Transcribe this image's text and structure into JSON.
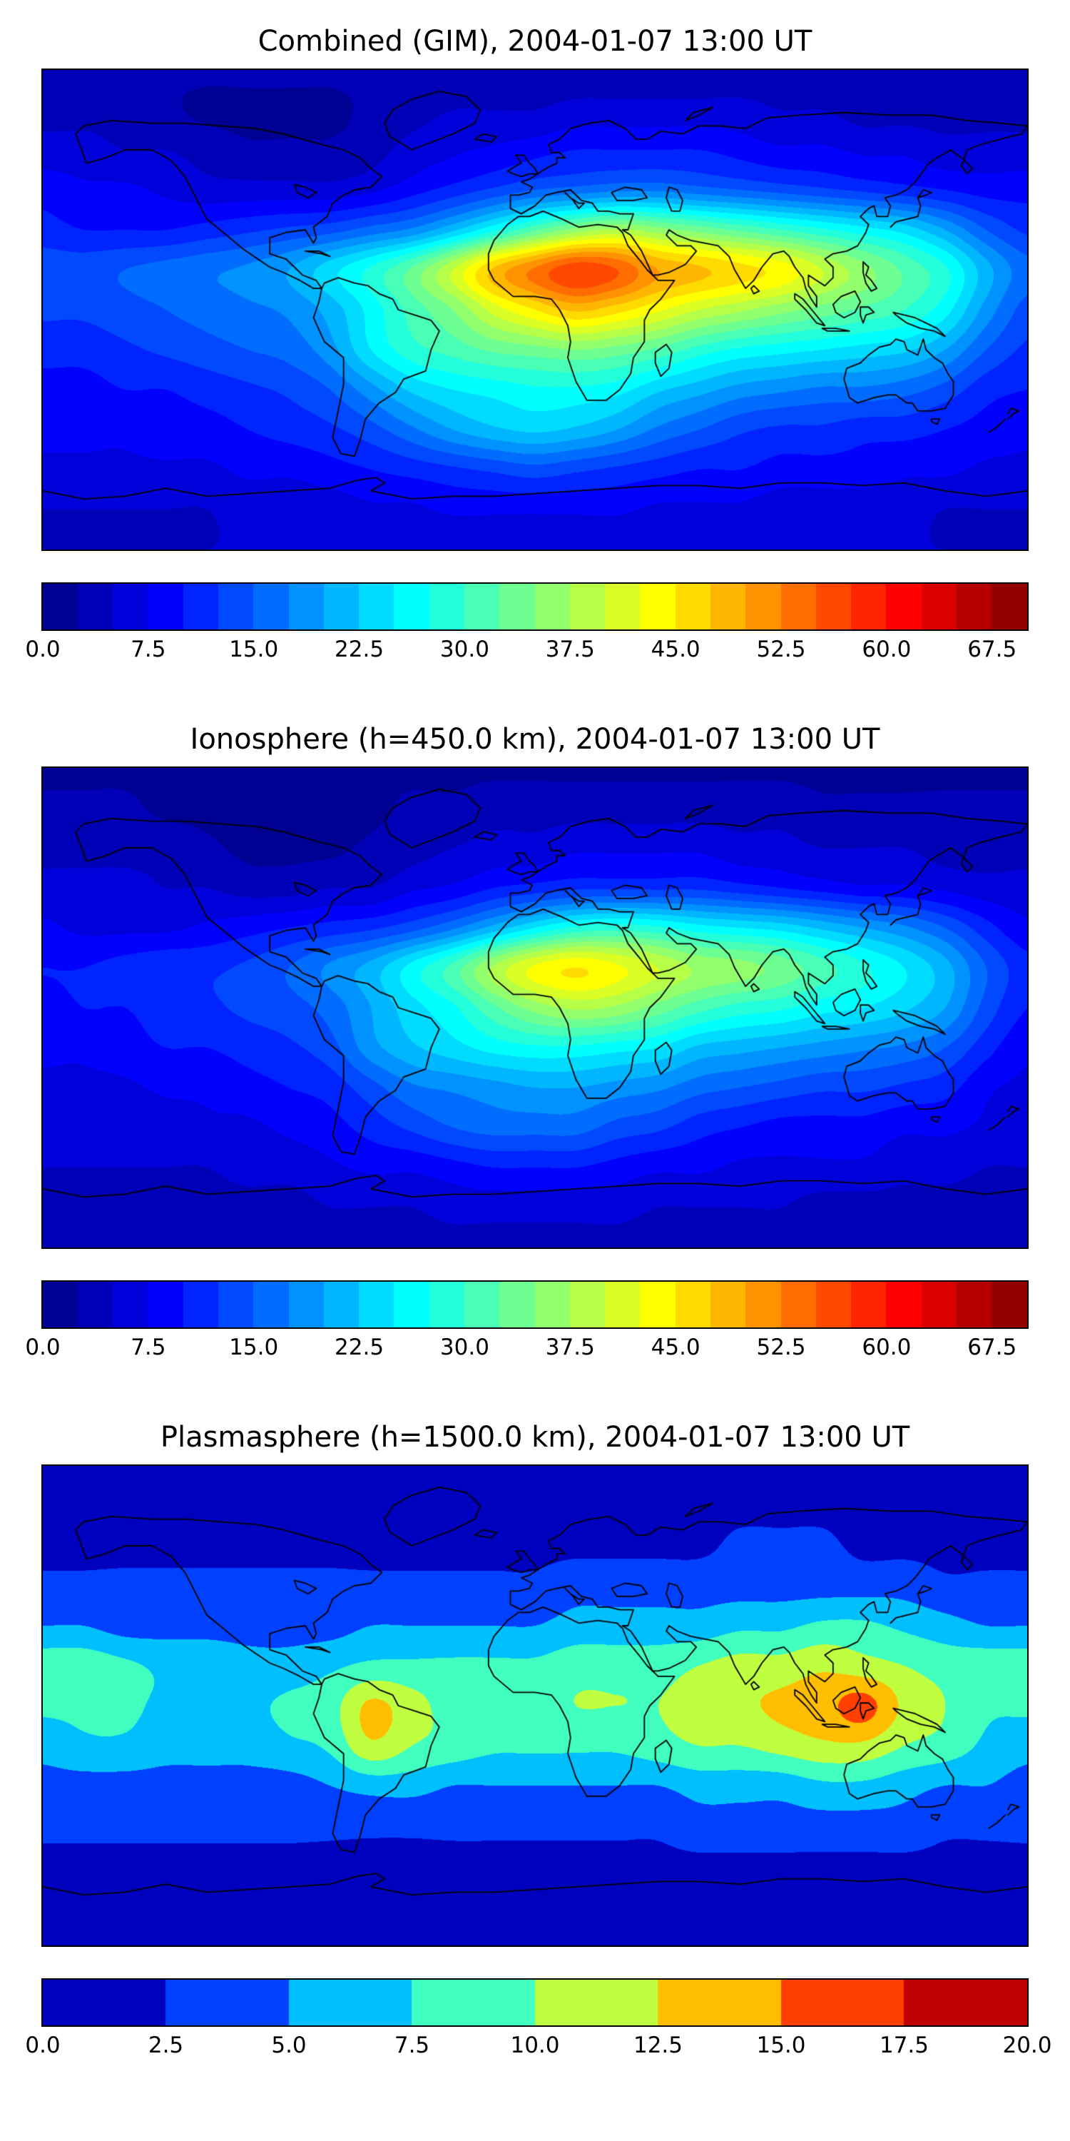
{
  "figure": {
    "background_color": "#ffffff",
    "frame_color": "#000000",
    "text_color": "#000000"
  },
  "chart_data": [
    {
      "type": "heatmap",
      "title": "Combined (GIM), 2004-01-07 13:00 UT",
      "colormap": "jet",
      "projection": "equirectangular",
      "xlabel": "",
      "ylabel": "",
      "lon_range": [
        -180,
        180
      ],
      "lat_range": [
        -90,
        90
      ],
      "x_lons": [
        -180,
        -165,
        -150,
        -135,
        -120,
        -105,
        -90,
        -75,
        -60,
        -45,
        -30,
        -15,
        0,
        15,
        30,
        45,
        60,
        75,
        90,
        105,
        120,
        135,
        150,
        165,
        180
      ],
      "y_lats": [
        90,
        75,
        60,
        45,
        30,
        15,
        0,
        -15,
        -30,
        -45,
        -60,
        -75,
        -90
      ],
      "vmin": 0,
      "vmax": 70,
      "level_step": 2.5,
      "colorbar_ticks": [
        "0.0",
        "7.5",
        "15.0",
        "22.5",
        "30.0",
        "37.5",
        "45.0",
        "52.5",
        "60.0",
        "67.5"
      ],
      "values": [
        [
          3,
          3,
          3,
          3,
          3,
          3,
          3,
          3,
          3,
          3,
          3,
          3,
          3,
          3,
          3,
          3,
          3,
          3,
          3,
          3,
          3,
          3,
          3,
          3,
          3
        ],
        [
          4,
          4,
          4,
          3,
          2,
          2,
          2,
          2,
          3,
          4,
          5,
          5,
          5,
          6,
          6,
          6,
          6,
          6,
          5,
          5,
          4,
          4,
          4,
          4,
          4
        ],
        [
          6,
          6,
          5,
          5,
          4,
          3,
          3,
          3,
          4,
          6,
          7,
          8,
          9,
          10,
          10,
          10,
          10,
          9,
          8,
          8,
          7,
          7,
          6,
          6,
          6
        ],
        [
          9,
          8,
          8,
          7,
          6,
          6,
          6,
          6,
          7,
          9,
          11,
          13,
          15,
          16,
          17,
          17,
          16,
          15,
          14,
          13,
          12,
          11,
          10,
          9,
          9
        ],
        [
          11,
          10,
          10,
          10,
          11,
          12,
          13,
          14,
          16,
          18,
          22,
          27,
          32,
          36,
          38,
          36,
          34,
          32,
          30,
          28,
          26,
          24,
          20,
          15,
          12
        ],
        [
          14,
          14,
          15,
          16,
          17,
          18,
          20,
          24,
          28,
          33,
          40,
          48,
          53,
          57,
          55,
          50,
          48,
          46,
          44,
          40,
          36,
          32,
          28,
          21,
          16
        ],
        [
          13,
          13,
          14,
          15,
          16,
          17,
          18,
          21,
          26,
          31,
          35,
          41,
          45,
          48,
          46,
          43,
          40,
          38,
          36,
          34,
          32,
          30,
          26,
          19,
          14
        ],
        [
          11,
          11,
          12,
          13,
          14,
          15,
          16,
          19,
          25,
          29,
          31,
          33,
          34,
          35,
          34,
          32,
          29,
          27,
          26,
          25,
          24,
          23,
          20,
          15,
          12
        ],
        [
          9,
          9,
          10,
          10,
          11,
          12,
          13,
          15,
          19,
          23,
          25,
          26,
          27,
          27,
          26,
          23,
          21,
          19,
          18,
          17,
          17,
          16,
          14,
          11,
          10
        ],
        [
          8,
          8,
          8,
          9,
          9,
          10,
          11,
          12,
          14,
          17,
          20,
          22,
          23,
          22,
          20,
          17,
          15,
          13,
          12,
          12,
          11,
          11,
          10,
          9,
          8
        ],
        [
          7,
          7,
          7,
          7,
          7,
          8,
          8,
          9,
          10,
          11,
          12,
          13,
          14,
          13,
          12,
          11,
          10,
          10,
          9,
          9,
          9,
          8,
          8,
          7,
          7
        ],
        [
          5,
          5,
          5,
          5,
          5,
          6,
          6,
          6,
          7,
          7,
          8,
          8,
          8,
          8,
          8,
          7,
          7,
          7,
          6,
          6,
          6,
          6,
          5,
          5,
          5
        ],
        [
          5,
          5,
          5,
          5,
          5,
          5,
          5,
          5,
          5,
          5,
          5,
          5,
          5,
          5,
          5,
          5,
          5,
          5,
          5,
          5,
          5,
          5,
          5,
          5,
          5
        ]
      ]
    },
    {
      "type": "heatmap",
      "title": "Ionosphere  (h=450.0 km), 2004-01-07 13:00 UT",
      "colormap": "jet",
      "projection": "equirectangular",
      "xlabel": "",
      "ylabel": "",
      "lon_range": [
        -180,
        180
      ],
      "lat_range": [
        -90,
        90
      ],
      "x_lons": [
        -180,
        -165,
        -150,
        -135,
        -120,
        -105,
        -90,
        -75,
        -60,
        -45,
        -30,
        -15,
        0,
        15,
        30,
        45,
        60,
        75,
        90,
        105,
        120,
        135,
        150,
        165,
        180
      ],
      "y_lats": [
        90,
        75,
        60,
        45,
        30,
        15,
        0,
        -15,
        -30,
        -45,
        -60,
        -75,
        -90
      ],
      "vmin": 0,
      "vmax": 70,
      "level_step": 2.5,
      "colorbar_ticks": [
        "0.0",
        "7.5",
        "15.0",
        "22.5",
        "30.0",
        "37.5",
        "45.0",
        "52.5",
        "60.0",
        "67.5"
      ],
      "values": [
        [
          2,
          2,
          2,
          2,
          2,
          2,
          2,
          2,
          2,
          2,
          2,
          2,
          2,
          2,
          2,
          2,
          2,
          2,
          2,
          2,
          2,
          2,
          2,
          2,
          2
        ],
        [
          3,
          3,
          3,
          2,
          2,
          2,
          2,
          2,
          2,
          3,
          3,
          4,
          4,
          4,
          4,
          4,
          4,
          4,
          4,
          3,
          3,
          3,
          3,
          3,
          3
        ],
        [
          4,
          4,
          4,
          4,
          3,
          2,
          2,
          2,
          3,
          4,
          5,
          6,
          6,
          7,
          7,
          7,
          7,
          6,
          6,
          5,
          5,
          5,
          4,
          4,
          4
        ],
        [
          6,
          6,
          6,
          5,
          5,
          4,
          4,
          5,
          5,
          7,
          8,
          10,
          11,
          12,
          12,
          12,
          12,
          11,
          10,
          9,
          8,
          8,
          7,
          6,
          6
        ],
        [
          8,
          7,
          7,
          7,
          8,
          9,
          10,
          11,
          12,
          14,
          17,
          21,
          25,
          28,
          29,
          28,
          26,
          25,
          24,
          22,
          20,
          18,
          15,
          11,
          8
        ],
        [
          10,
          10,
          11,
          12,
          12,
          13,
          15,
          18,
          21,
          26,
          31,
          38,
          43,
          45,
          43,
          40,
          37,
          36,
          34,
          31,
          28,
          25,
          21,
          15,
          11
        ],
        [
          9,
          10,
          10,
          11,
          12,
          13,
          14,
          16,
          20,
          24,
          27,
          32,
          36,
          38,
          37,
          34,
          31,
          29,
          28,
          26,
          25,
          23,
          20,
          14,
          10
        ],
        [
          8,
          8,
          9,
          10,
          10,
          11,
          12,
          14,
          19,
          22,
          24,
          26,
          27,
          27,
          26,
          25,
          22,
          21,
          20,
          19,
          18,
          17,
          15,
          11,
          8
        ],
        [
          7,
          7,
          7,
          8,
          8,
          9,
          10,
          11,
          14,
          17,
          18,
          19,
          20,
          20,
          19,
          18,
          16,
          15,
          14,
          13,
          13,
          12,
          11,
          8,
          7
        ],
        [
          6,
          6,
          6,
          6,
          7,
          7,
          8,
          9,
          11,
          13,
          15,
          16,
          16,
          16,
          14,
          13,
          11,
          10,
          9,
          9,
          9,
          8,
          8,
          7,
          6
        ],
        [
          5,
          5,
          5,
          5,
          5,
          6,
          6,
          7,
          8,
          8,
          9,
          10,
          10,
          10,
          9,
          8,
          8,
          7,
          7,
          7,
          7,
          6,
          6,
          5,
          5
        ],
        [
          4,
          4,
          4,
          4,
          4,
          4,
          4,
          5,
          5,
          5,
          6,
          6,
          6,
          6,
          6,
          5,
          5,
          5,
          5,
          4,
          4,
          4,
          4,
          4,
          4
        ],
        [
          4,
          4,
          4,
          4,
          4,
          4,
          4,
          4,
          4,
          4,
          4,
          4,
          4,
          4,
          4,
          4,
          4,
          4,
          4,
          4,
          4,
          4,
          4,
          4,
          4
        ]
      ]
    },
    {
      "type": "heatmap",
      "title": "Plasmasphere (h=1500.0 km), 2004-01-07 13:00 UT",
      "colormap": "jet",
      "projection": "equirectangular",
      "xlabel": "",
      "ylabel": "",
      "lon_range": [
        -180,
        180
      ],
      "lat_range": [
        -90,
        90
      ],
      "x_lons": [
        -180,
        -165,
        -150,
        -135,
        -120,
        -105,
        -90,
        -75,
        -60,
        -45,
        -30,
        -15,
        0,
        15,
        30,
        45,
        60,
        75,
        90,
        105,
        120,
        135,
        150,
        165,
        180
      ],
      "y_lats": [
        90,
        75,
        60,
        45,
        30,
        15,
        0,
        -15,
        -30,
        -45,
        -60,
        -75,
        -90
      ],
      "vmin": 0,
      "vmax": 20,
      "level_step": 2.5,
      "colorbar_ticks": [
        "0.0",
        "2.5",
        "5.0",
        "7.5",
        "10.0",
        "12.5",
        "15.0",
        "17.5",
        "20.0"
      ],
      "values": [
        [
          2,
          2,
          2,
          2,
          2,
          2,
          2,
          2,
          2,
          2,
          2,
          2,
          2,
          2,
          2,
          2,
          2,
          2,
          2,
          2,
          2,
          2,
          2,
          2,
          2
        ],
        [
          2,
          2,
          2,
          2,
          2,
          2,
          2,
          2,
          2,
          2,
          2,
          2,
          2,
          2,
          2,
          2,
          2,
          2,
          2,
          2,
          2,
          2,
          2,
          2,
          2
        ],
        [
          2,
          2,
          2,
          2,
          2,
          2,
          2,
          2,
          2,
          2,
          2,
          2,
          2,
          2,
          2,
          2,
          2,
          3,
          3,
          3,
          2,
          2,
          2,
          2,
          2
        ],
        [
          3,
          3,
          3,
          3,
          3,
          3,
          3,
          3,
          3,
          3,
          3,
          3,
          3,
          4,
          4,
          4,
          4,
          4,
          4,
          4,
          4,
          4,
          3,
          3,
          3
        ],
        [
          5,
          5,
          4,
          4,
          4,
          4,
          4,
          4,
          5,
          5,
          5,
          5,
          5,
          6,
          6,
          6,
          6,
          7,
          7,
          8,
          8,
          7,
          6,
          5,
          5
        ],
        [
          9,
          9,
          8,
          7,
          7,
          6,
          6,
          7,
          8,
          8,
          8,
          8,
          8,
          9,
          9,
          9,
          10,
          11,
          11,
          12,
          11,
          10,
          9,
          9,
          9
        ],
        [
          8,
          8,
          8,
          7,
          7,
          7,
          8,
          9,
          13,
          11,
          9,
          9,
          9,
          10,
          10,
          10,
          11,
          12,
          13,
          14,
          16,
          12,
          10,
          8,
          8
        ],
        [
          6,
          7,
          7,
          6,
          6,
          6,
          7,
          8,
          12,
          10,
          9,
          8,
          8,
          8,
          8,
          9,
          10,
          10,
          11,
          12,
          12,
          10,
          9,
          7,
          6
        ],
        [
          4,
          4,
          4,
          4,
          4,
          4,
          4,
          5,
          6,
          6,
          5,
          5,
          5,
          5,
          5,
          5,
          6,
          6,
          6,
          7,
          7,
          6,
          5,
          5,
          4
        ],
        [
          3,
          3,
          3,
          3,
          3,
          3,
          3,
          3,
          3,
          3,
          3,
          3,
          3,
          3,
          3,
          3,
          4,
          4,
          4,
          4,
          4,
          4,
          3,
          3,
          3
        ],
        [
          2,
          2,
          2,
          2,
          2,
          2,
          2,
          2,
          2,
          2,
          2,
          2,
          2,
          2,
          2,
          2,
          2,
          2,
          2,
          2,
          2,
          2,
          2,
          2,
          2
        ],
        [
          2,
          2,
          2,
          2,
          2,
          2,
          2,
          2,
          2,
          2,
          2,
          2,
          2,
          2,
          2,
          2,
          2,
          2,
          2,
          2,
          2,
          2,
          2,
          2,
          2
        ],
        [
          2,
          2,
          2,
          2,
          2,
          2,
          2,
          2,
          2,
          2,
          2,
          2,
          2,
          2,
          2,
          2,
          2,
          2,
          2,
          2,
          2,
          2,
          2,
          2,
          2
        ]
      ]
    }
  ]
}
